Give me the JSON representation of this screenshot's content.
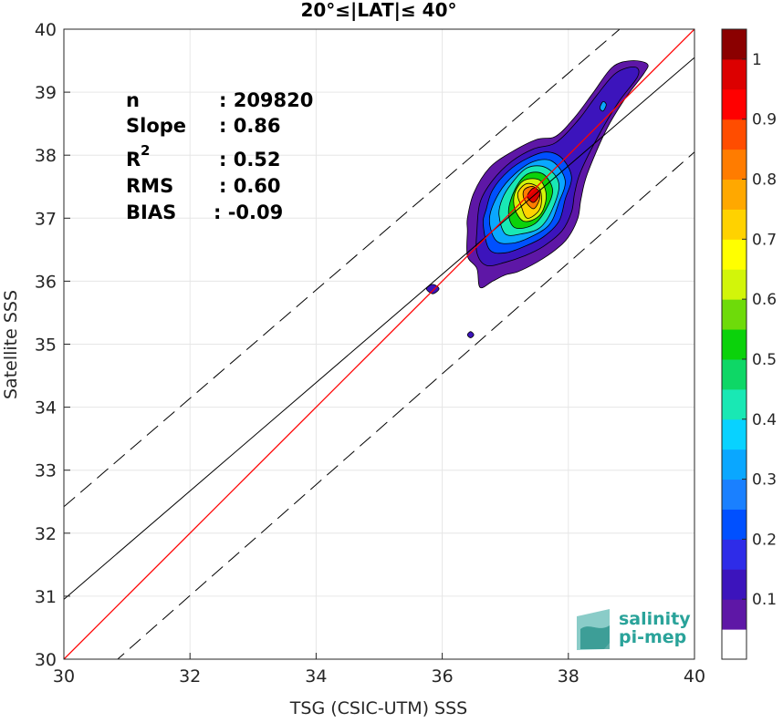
{
  "chart_data": {
    "type": "heatmap",
    "title": "20°≤|LAT|≤ 40°",
    "xlabel": "TSG (CSIC-UTM) SSS",
    "ylabel": "Satellite SSS",
    "xlim": [
      30,
      40
    ],
    "ylim": [
      30,
      40
    ],
    "xticks": [
      "30",
      "32",
      "34",
      "36",
      "38",
      "40"
    ],
    "yticks": [
      "30",
      "31",
      "32",
      "33",
      "34",
      "35",
      "36",
      "37",
      "38",
      "39",
      "40"
    ],
    "grid": true,
    "stats": {
      "n_label": "n",
      "n_value": ": 209820",
      "slope_label": "Slope",
      "slope_value": ": 0.86",
      "r2_label": "R",
      "r2_sup": "2",
      "r2_value": ": 0.52",
      "rms_label": "RMS",
      "rms_value": ": 0.60",
      "bias_label": "BIAS",
      "bias_value": ": -0.09"
    },
    "lines": {
      "identity": {
        "x": [
          30,
          40
        ],
        "y": [
          30,
          40
        ],
        "color": "#ff0000"
      },
      "fit": {
        "x": [
          30,
          40
        ],
        "y": [
          30.95,
          39.55
        ],
        "color": "#000000"
      },
      "upper_dashed": {
        "x": [
          30,
          40
        ],
        "y": [
          32.42,
          41.02
        ],
        "color": "#000000"
      },
      "lower_dashed": {
        "x": [
          30,
          40
        ],
        "y": [
          29.25,
          38.05
        ],
        "color": "#000000"
      }
    },
    "contour_levels": [
      0.05,
      0.1,
      0.15,
      0.2,
      0.25,
      0.3,
      0.35,
      0.4,
      0.45,
      0.5,
      0.55,
      0.6,
      0.65,
      0.7,
      0.75,
      0.8,
      0.85,
      0.9,
      0.95,
      1.0
    ],
    "contours": [
      {
        "level": 0.05,
        "points": [
          [
            36.4,
            36.8
          ],
          [
            36.4,
            36.4
          ],
          [
            36.55,
            36.2
          ],
          [
            36.6,
            35.9
          ],
          [
            36.8,
            36.0
          ],
          [
            37.0,
            36.1
          ],
          [
            37.2,
            36.15
          ],
          [
            37.5,
            36.3
          ],
          [
            37.8,
            36.5
          ],
          [
            38.0,
            36.7
          ],
          [
            38.15,
            37.0
          ],
          [
            38.2,
            37.3
          ],
          [
            38.3,
            37.7
          ],
          [
            38.6,
            38.4
          ],
          [
            38.9,
            38.9
          ],
          [
            39.2,
            39.3
          ],
          [
            39.25,
            39.45
          ],
          [
            39.0,
            39.5
          ],
          [
            38.7,
            39.4
          ],
          [
            38.4,
            39.0
          ],
          [
            38.1,
            38.6
          ],
          [
            37.8,
            38.3
          ],
          [
            37.5,
            38.25
          ],
          [
            37.1,
            38.05
          ],
          [
            36.75,
            37.8
          ],
          [
            36.5,
            37.4
          ],
          [
            36.4,
            37.0
          ]
        ]
      },
      {
        "level": 0.1,
        "points": [
          [
            36.55,
            36.8
          ],
          [
            36.55,
            36.45
          ],
          [
            36.7,
            36.25
          ],
          [
            37.0,
            36.3
          ],
          [
            37.3,
            36.4
          ],
          [
            37.6,
            36.55
          ],
          [
            37.9,
            36.8
          ],
          [
            38.05,
            37.1
          ],
          [
            38.1,
            37.4
          ],
          [
            38.2,
            37.75
          ],
          [
            38.5,
            38.35
          ],
          [
            38.8,
            38.85
          ],
          [
            39.1,
            39.25
          ],
          [
            39.05,
            39.4
          ],
          [
            38.75,
            39.3
          ],
          [
            38.45,
            38.95
          ],
          [
            38.15,
            38.55
          ],
          [
            37.8,
            38.2
          ],
          [
            37.45,
            38.1
          ],
          [
            37.1,
            37.9
          ],
          [
            36.8,
            37.6
          ],
          [
            36.6,
            37.25
          ]
        ]
      },
      {
        "level": 0.2,
        "points": [
          [
            36.65,
            36.9
          ],
          [
            36.75,
            36.5
          ],
          [
            37.0,
            36.45
          ],
          [
            37.3,
            36.55
          ],
          [
            37.6,
            36.7
          ],
          [
            37.85,
            36.95
          ],
          [
            37.95,
            37.3
          ],
          [
            38.05,
            37.65
          ],
          [
            37.9,
            37.95
          ],
          [
            37.65,
            38.05
          ],
          [
            37.35,
            37.95
          ],
          [
            37.05,
            37.75
          ],
          [
            36.8,
            37.45
          ],
          [
            36.7,
            37.15
          ]
        ]
      },
      {
        "level": 0.3,
        "points": [
          [
            36.75,
            37.0
          ],
          [
            36.85,
            36.65
          ],
          [
            37.1,
            36.6
          ],
          [
            37.4,
            36.7
          ],
          [
            37.7,
            36.9
          ],
          [
            37.85,
            37.25
          ],
          [
            37.95,
            37.6
          ],
          [
            37.75,
            37.9
          ],
          [
            37.45,
            37.9
          ],
          [
            37.15,
            37.7
          ],
          [
            36.9,
            37.4
          ]
        ]
      },
      {
        "level": 0.4,
        "points": [
          [
            36.9,
            37.05
          ],
          [
            37.0,
            36.75
          ],
          [
            37.25,
            36.75
          ],
          [
            37.55,
            36.85
          ],
          [
            37.75,
            37.15
          ],
          [
            37.85,
            37.55
          ],
          [
            37.65,
            37.8
          ],
          [
            37.35,
            37.8
          ],
          [
            37.1,
            37.55
          ],
          [
            36.95,
            37.3
          ]
        ]
      },
      {
        "level": 0.5,
        "points": [
          [
            37.05,
            37.1
          ],
          [
            37.15,
            36.85
          ],
          [
            37.45,
            36.9
          ],
          [
            37.65,
            37.15
          ],
          [
            37.75,
            37.45
          ],
          [
            37.6,
            37.7
          ],
          [
            37.35,
            37.7
          ],
          [
            37.15,
            37.45
          ]
        ]
      },
      {
        "level": 0.6,
        "points": [
          [
            37.15,
            37.15
          ],
          [
            37.3,
            36.95
          ],
          [
            37.55,
            37.05
          ],
          [
            37.65,
            37.35
          ],
          [
            37.55,
            37.6
          ],
          [
            37.3,
            37.6
          ],
          [
            37.15,
            37.4
          ]
        ]
      },
      {
        "level": 0.7,
        "points": [
          [
            37.25,
            37.2
          ],
          [
            37.35,
            37.0
          ],
          [
            37.55,
            37.15
          ],
          [
            37.55,
            37.45
          ],
          [
            37.35,
            37.55
          ],
          [
            37.2,
            37.4
          ]
        ]
      },
      {
        "level": 0.8,
        "points": [
          [
            37.3,
            37.3
          ],
          [
            37.45,
            37.15
          ],
          [
            37.55,
            37.35
          ],
          [
            37.45,
            37.5
          ],
          [
            37.3,
            37.45
          ]
        ]
      },
      {
        "level": 0.95,
        "points": [
          [
            37.35,
            37.35
          ],
          [
            37.45,
            37.25
          ],
          [
            37.55,
            37.4
          ],
          [
            37.45,
            37.48
          ]
        ]
      }
    ],
    "islands": [
      {
        "level": 0.1,
        "points": [
          [
            35.75,
            35.88
          ],
          [
            35.85,
            35.8
          ],
          [
            35.95,
            35.88
          ],
          [
            35.85,
            35.95
          ]
        ]
      },
      {
        "level": 0.1,
        "points": [
          [
            36.4,
            35.15
          ],
          [
            36.45,
            35.1
          ],
          [
            36.5,
            35.15
          ],
          [
            36.45,
            35.2
          ]
        ]
      },
      {
        "level": 0.3,
        "points": [
          [
            38.5,
            38.75
          ],
          [
            38.55,
            38.7
          ],
          [
            38.6,
            38.8
          ],
          [
            38.55,
            38.85
          ]
        ]
      }
    ],
    "colorbar": {
      "labels": [
        "0.1",
        "0.2",
        "0.3",
        "0.4",
        "0.5",
        "0.6",
        "0.7",
        "0.8",
        "0.9",
        "1"
      ],
      "colors": [
        "#ffffff",
        "#5e17a6",
        "#3c14bc",
        "#2e2ce8",
        "#0050ff",
        "#1a80ff",
        "#0aa7ff",
        "#08d2ff",
        "#19e8b4",
        "#0ed766",
        "#0bd20b",
        "#6edb0a",
        "#d2f50a",
        "#ffff00",
        "#ffd200",
        "#ffa800",
        "#ff7c00",
        "#ff4d00",
        "#ff0000",
        "#dc0000",
        "#8b0000"
      ]
    },
    "logo": {
      "line1": "salinity",
      "line2": "pi-mep"
    }
  }
}
